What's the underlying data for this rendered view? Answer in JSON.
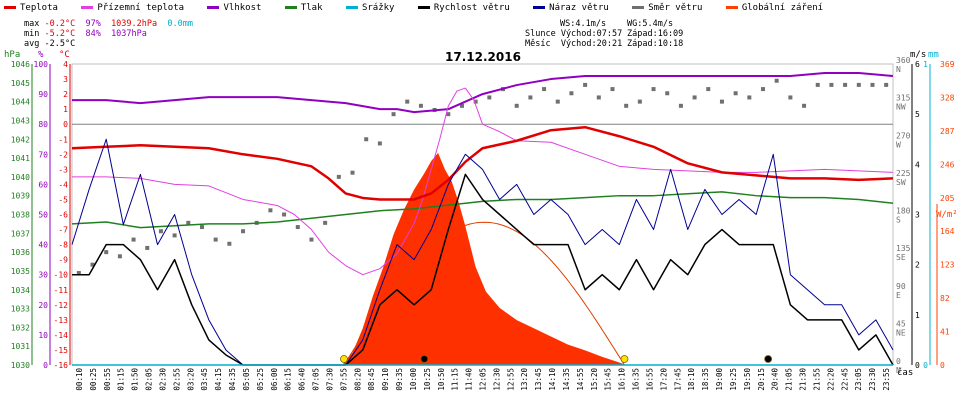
{
  "legend": [
    {
      "label": "Teplota",
      "color": "#e00000"
    },
    {
      "label": "Přízemní teplota",
      "color": "#e040e0"
    },
    {
      "label": "Vlhkost",
      "color": "#9000c0"
    },
    {
      "label": "Tlak",
      "color": "#208020"
    },
    {
      "label": "Srážky",
      "color": "#00b0d0"
    },
    {
      "label": "Rychlost větru",
      "color": "#000000"
    },
    {
      "label": "Náraz větru",
      "color": "#000090"
    },
    {
      "label": "Směr větru",
      "color": "#707070"
    },
    {
      "label": "Globální záření",
      "color": "#ff4000"
    }
  ],
  "stats": {
    "max_label": "max",
    "max_temp": "-0.2°C",
    "max_hum": "97%",
    "max_press": "1039.2hPa",
    "max_rain": "0.0mm",
    "min_label": "min",
    "min_temp": "-5.2°C",
    "min_hum": "84%",
    "min_press": "1037hPa",
    "avg_label": "avg",
    "avg_temp": "-2.5°C"
  },
  "sun": {
    "ws": "WS:4.1m/s",
    "wg": "WG:5.4m/s",
    "slunce": "Slunce Východ:07:57",
    "slunce_zapad": "Západ:16:09",
    "mesic": "Měsíc  Východ:20:21",
    "mesic_zapad": "Západ:10:18"
  },
  "chart_title": "17.12.2016",
  "unit_labels": {
    "hpa": "hPa",
    "pct": "%",
    "degc": "°C",
    "ms": "m/s",
    "mm": "mm",
    "wm2": "W/m²",
    "cas": "čas"
  },
  "chart_data": {
    "type": "line",
    "title": "17.12.2016",
    "axes": {
      "hpa": {
        "min": 1030,
        "max": 1046,
        "ticks": [
          1030,
          1031,
          1032,
          1033,
          1034,
          1035,
          1036,
          1037,
          1038,
          1039,
          1040,
          1041,
          1042,
          1043,
          1044,
          1045,
          1046
        ]
      },
      "pct": {
        "min": 0,
        "max": 100,
        "ticks": [
          0,
          10,
          20,
          30,
          40,
          50,
          60,
          70,
          80,
          90,
          100
        ]
      },
      "degc": {
        "min": -16,
        "max": 4,
        "ticks": [
          -16,
          -15,
          -14,
          -13,
          -12,
          -11,
          -10,
          -9,
          -8,
          -7,
          -6,
          -5,
          -4,
          -3,
          -2,
          -1,
          0,
          1,
          2,
          3,
          4
        ]
      },
      "dir": {
        "ticks": [
          {
            "v": 0,
            "t": "0\nN"
          },
          {
            "v": 45,
            "t": "45\nNE"
          },
          {
            "v": 90,
            "t": "90\nE"
          },
          {
            "v": 135,
            "t": "135\nSE"
          },
          {
            "v": 180,
            "t": "180\nS"
          },
          {
            "v": 225,
            "t": "225\nSW"
          },
          {
            "v": 270,
            "t": "270\nW"
          },
          {
            "v": 315,
            "t": "315\nNW"
          },
          {
            "v": 360,
            "t": "360\nN"
          }
        ]
      },
      "ms": {
        "min": 0,
        "max": 6,
        "ticks": [
          0,
          1,
          2,
          3,
          4,
          5,
          6
        ]
      },
      "mm": {
        "min": 0,
        "max": 1,
        "ticks": [
          0,
          1
        ]
      },
      "wm2": {
        "min": 0,
        "max": 369,
        "ticks": [
          0,
          41,
          82,
          123,
          164,
          205,
          246,
          287,
          328,
          369
        ]
      },
      "time_ticks": [
        "00:10",
        "00:25",
        "00:55",
        "01:15",
        "01:50",
        "02:05",
        "02:30",
        "02:55",
        "03:20",
        "03:45",
        "04:15",
        "04:35",
        "05:05",
        "05:25",
        "06:00",
        "06:15",
        "06:40",
        "07:05",
        "07:30",
        "07:55",
        "08:20",
        "08:45",
        "09:10",
        "09:35",
        "10:00",
        "10:25",
        "10:50",
        "11:15",
        "11:40",
        "12:05",
        "12:30",
        "12:55",
        "13:20",
        "13:45",
        "14:10",
        "14:35",
        "14:55",
        "15:20",
        "15:45",
        "16:10",
        "16:35",
        "16:55",
        "17:20",
        "17:45",
        "18:10",
        "18:35",
        "19:00",
        "19:25",
        "19:50",
        "20:15",
        "20:40",
        "21:05",
        "21:30",
        "21:55",
        "22:20",
        "22:45",
        "23:05",
        "23:30",
        "23:55"
      ]
    },
    "series": [
      {
        "name": "Teplota",
        "axis": "degc",
        "x": [
          0,
          1,
          2,
          3,
          4,
          5,
          6,
          7,
          7.5,
          8,
          8.5,
          9,
          9.5,
          10,
          10.5,
          11,
          11.5,
          12,
          13,
          14,
          15,
          16,
          17,
          18,
          19,
          20,
          21,
          22,
          23,
          24
        ],
        "values": [
          -1.6,
          -1.5,
          -1.4,
          -1.5,
          -1.6,
          -2.0,
          -2.3,
          -2.8,
          -3.6,
          -4.6,
          -4.9,
          -5.0,
          -5.0,
          -5.0,
          -4.6,
          -3.7,
          -2.5,
          -1.6,
          -1.1,
          -0.4,
          -0.2,
          -0.8,
          -1.5,
          -2.6,
          -3.2,
          -3.4,
          -3.6,
          -3.6,
          -3.7,
          -3.6
        ]
      },
      {
        "name": "Přízemní teplota",
        "axis": "degc",
        "x": [
          0,
          1,
          2,
          3,
          4,
          5,
          6,
          6.5,
          7,
          7.5,
          8,
          8.5,
          9,
          9.5,
          10,
          10.25,
          10.5,
          10.75,
          11,
          11.25,
          11.5,
          11.75,
          12,
          12.5,
          13,
          14,
          15,
          16,
          17,
          18,
          19,
          20,
          21,
          22,
          23,
          24
        ],
        "values": [
          -3.5,
          -3.5,
          -3.6,
          -4.0,
          -4.1,
          -5.0,
          -5.4,
          -6.0,
          -7.0,
          -8.5,
          -9.4,
          -10.0,
          -9.6,
          -8.6,
          -6.6,
          -5.0,
          -3.0,
          -1.0,
          1.2,
          2.2,
          2.4,
          1.6,
          0.0,
          -0.5,
          -1.1,
          -1.2,
          -2.0,
          -2.8,
          -3.0,
          -3.1,
          -3.2,
          -3.2,
          -3.1,
          -3.0,
          -3.1,
          -3.2
        ]
      },
      {
        "name": "Vlhkost",
        "axis": "pct",
        "x": [
          0,
          1,
          2,
          3,
          4,
          5,
          6,
          7,
          8,
          8.5,
          9,
          9.5,
          10,
          11,
          12,
          13,
          14,
          15,
          16,
          17,
          18,
          19,
          20,
          21,
          22,
          23,
          24
        ],
        "values": [
          88,
          88,
          87,
          88,
          89,
          89,
          89,
          88,
          87,
          86,
          85,
          85,
          84,
          85,
          90,
          93,
          95,
          96,
          96,
          96,
          96,
          96,
          96,
          96,
          97,
          97,
          96
        ]
      },
      {
        "name": "Tlak",
        "axis": "hpa",
        "x": [
          0,
          1,
          2,
          3,
          4,
          5,
          6,
          7,
          8,
          9,
          10,
          11,
          12,
          13,
          14,
          15,
          16,
          17,
          18,
          19,
          20,
          21,
          22,
          23,
          24
        ],
        "values": [
          1037.5,
          1037.6,
          1037.3,
          1037.4,
          1037.5,
          1037.5,
          1037.6,
          1037.8,
          1038.0,
          1038.2,
          1038.3,
          1038.5,
          1038.7,
          1038.8,
          1038.8,
          1038.9,
          1039.0,
          1039.0,
          1039.1,
          1039.2,
          1039.0,
          1038.9,
          1038.9,
          1038.8,
          1038.6
        ]
      },
      {
        "name": "Srážky",
        "axis": "mm",
        "x": [
          0,
          24
        ],
        "values": [
          0,
          0
        ]
      },
      {
        "name": "Rychlost větru",
        "axis": "ms",
        "x": [
          0,
          0.5,
          1,
          1.5,
          2,
          2.5,
          3,
          3.5,
          4,
          4.5,
          5,
          5.5,
          6,
          6.5,
          7,
          7.5,
          8,
          8.5,
          9,
          9.5,
          10,
          10.5,
          11,
          11.5,
          12,
          12.5,
          13,
          13.5,
          14,
          14.5,
          15,
          15.5,
          16,
          16.5,
          17,
          17.5,
          18,
          18.5,
          19,
          19.5,
          20,
          20.5,
          21,
          21.5,
          22,
          22.5,
          23,
          23.5,
          24
        ],
        "values": [
          1.8,
          1.8,
          2.4,
          2.4,
          2.1,
          1.5,
          2.1,
          1.2,
          0.5,
          0.2,
          0,
          0,
          0,
          0,
          0,
          0,
          0,
          0.3,
          1.2,
          1.5,
          1.2,
          1.5,
          2.7,
          3.8,
          3.3,
          3.0,
          2.7,
          2.4,
          2.4,
          2.4,
          1.5,
          1.8,
          1.5,
          2.1,
          1.5,
          2.1,
          1.8,
          2.4,
          2.7,
          2.4,
          2.4,
          2.4,
          1.2,
          0.9,
          0.9,
          0.9,
          0.3,
          0.6,
          0
        ]
      },
      {
        "name": "Náraz větru",
        "axis": "ms",
        "x": [
          0,
          0.5,
          1,
          1.5,
          2,
          2.5,
          3,
          3.5,
          4,
          4.5,
          5,
          5.5,
          6,
          6.5,
          7,
          7.5,
          8,
          8.5,
          9,
          9.5,
          10,
          10.5,
          11,
          11.5,
          12,
          12.5,
          13,
          13.5,
          14,
          14.5,
          15,
          15.5,
          16,
          16.5,
          17,
          17.5,
          18,
          18.5,
          19,
          19.5,
          20,
          20.5,
          21,
          21.5,
          22,
          22.5,
          23,
          23.5,
          24
        ],
        "values": [
          2.4,
          3.5,
          4.5,
          2.8,
          3.8,
          2.4,
          3.0,
          1.8,
          0.9,
          0.3,
          0,
          0,
          0,
          0,
          0,
          0,
          0,
          0.5,
          1.5,
          2.4,
          2.1,
          2.7,
          3.6,
          4.2,
          3.9,
          3.3,
          3.6,
          3.0,
          3.3,
          3.0,
          2.4,
          2.7,
          2.4,
          3.3,
          2.7,
          3.9,
          2.7,
          3.5,
          3.0,
          3.3,
          3.0,
          4.2,
          1.8,
          1.5,
          1.2,
          1.2,
          0.6,
          0.9,
          0.3
        ]
      },
      {
        "name": "Globální záření",
        "axis": "wm2",
        "x": [
          0,
          7.9,
          8.2,
          8.5,
          8.8,
          9.1,
          9.4,
          9.7,
          10,
          10.3,
          10.5,
          10.7,
          10.9,
          11.1,
          11.3,
          11.5,
          11.8,
          12.1,
          12.5,
          13,
          13.5,
          14,
          14.5,
          15,
          15.5,
          16,
          16.2,
          24
        ],
        "values": [
          0,
          0,
          15,
          45,
          85,
          120,
          160,
          190,
          215,
          235,
          250,
          260,
          240,
          225,
          200,
          170,
          120,
          90,
          70,
          55,
          45,
          35,
          25,
          18,
          10,
          3,
          0,
          0
        ]
      },
      {
        "name": "Směr větru",
        "axis": "dir",
        "type": "scatter",
        "x": [
          0.2,
          0.6,
          1.0,
          1.4,
          1.8,
          2.2,
          2.6,
          3.0,
          3.4,
          3.8,
          4.2,
          4.6,
          5.0,
          5.4,
          5.8,
          6.2,
          6.6,
          7.0,
          7.4,
          7.8,
          8.2,
          8.6,
          9.0,
          9.4,
          9.8,
          10.2,
          10.6,
          11.0,
          11.4,
          11.8,
          12.2,
          12.6,
          13.0,
          13.4,
          13.8,
          14.2,
          14.6,
          15.0,
          15.4,
          15.8,
          16.2,
          16.6,
          17.0,
          17.4,
          17.8,
          18.2,
          18.6,
          19.0,
          19.4,
          19.8,
          20.2,
          20.6,
          21.0,
          21.4,
          21.8,
          22.2,
          22.6,
          23.0,
          23.4,
          23.8
        ],
        "values": [
          110,
          120,
          135,
          130,
          150,
          140,
          160,
          155,
          170,
          165,
          150,
          145,
          160,
          170,
          185,
          180,
          165,
          150,
          170,
          225,
          230,
          270,
          265,
          300,
          315,
          310,
          305,
          300,
          310,
          315,
          320,
          330,
          310,
          320,
          330,
          315,
          325,
          335,
          320,
          330,
          310,
          315,
          330,
          325,
          310,
          320,
          330,
          315,
          325,
          320,
          330,
          340,
          320,
          310,
          335,
          335,
          335,
          335,
          335,
          335
        ]
      }
    ],
    "annotations": [
      {
        "label": "sunrise",
        "x": 7.95,
        "type": "sun"
      },
      {
        "label": "sunset",
        "x": 16.15,
        "type": "sun"
      },
      {
        "label": "moonset",
        "x": 10.3,
        "type": "moon"
      },
      {
        "label": "moonrise",
        "x": 20.35,
        "type": "moon"
      }
    ]
  }
}
